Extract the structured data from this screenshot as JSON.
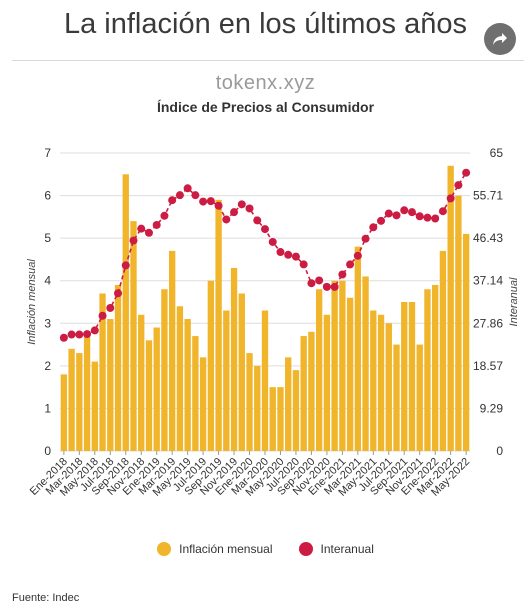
{
  "page": {
    "title": "La inflación en los últimos años",
    "watermark": "tokenx.xyz",
    "source": "Fuente: Indec"
  },
  "colors": {
    "bar": "#f0b52b",
    "line": "#cc1c43",
    "grid": "#dddddd"
  },
  "icons": {
    "share": "share-icon"
  },
  "chart_data": {
    "type": "bar+line",
    "title": "Índice de Precios al Consumidor",
    "ylabel_left": "Inflación mensual",
    "ylabel_right": "Interanual",
    "ylim_left": [
      0,
      7
    ],
    "ylim_right": [
      0,
      65
    ],
    "yticks_left": [
      "0",
      "1",
      "2",
      "3",
      "4",
      "5",
      "6",
      "7"
    ],
    "yticks_right": [
      "0",
      "9.29",
      "18.57",
      "27.86",
      "37.14",
      "46.43",
      "55.71",
      "65"
    ],
    "categories": [
      "Ene-2018",
      "Feb-2018",
      "Mar-2018",
      "Abr-2018",
      "May-2018",
      "Jun-2018",
      "Jul-2018",
      "Ago-2018",
      "Sep-2018",
      "Oct-2018",
      "Nov-2018",
      "Dic-2018",
      "Ene-2019",
      "Feb-2019",
      "Mar-2019",
      "Abr-2019",
      "May-2019",
      "Jun-2019",
      "Jul-2019",
      "Ago-2019",
      "Sep-2019",
      "Oct-2019",
      "Nov-2019",
      "Dic-2019",
      "Ene-2020",
      "Feb-2020",
      "Mar-2020",
      "Abr-2020",
      "May-2020",
      "Jun-2020",
      "Jul-2020",
      "Ago-2020",
      "Sep-2020",
      "Oct-2020",
      "Nov-2020",
      "Dic-2020",
      "Ene-2021",
      "Feb-2021",
      "Mar-2021",
      "Abr-2021",
      "May-2021",
      "Jun-2021",
      "Jul-2021",
      "Ago-2021",
      "Sep-2021",
      "Oct-2021",
      "Nov-2021",
      "Dic-2021",
      "Ene-2022",
      "Feb-2022",
      "Mar-2022",
      "Abr-2022",
      "May-2022"
    ],
    "x_tick_labels": [
      "Ene-2018",
      "Mar-2018",
      "May-2018",
      "Jul-2018",
      "Sep-2018",
      "Nov-2018",
      "Ene-2019",
      "Mar-2019",
      "May-2019",
      "Jul-2019",
      "Sep-2019",
      "Nov-2019",
      "Ene-2020",
      "Mar-2020",
      "May-2020",
      "Jul-2020",
      "Sep-2020",
      "Nov-2020",
      "Ene-2021",
      "Mar-2021",
      "May-2021",
      "Jul-2021",
      "Sep-2021",
      "Nov-2021",
      "Ene-2022",
      "Mar-2022",
      "May-2022"
    ],
    "series": [
      {
        "name": "Inflación mensual",
        "type": "bar",
        "values": [
          1.8,
          2.4,
          2.3,
          2.7,
          2.1,
          3.7,
          3.1,
          3.9,
          6.5,
          5.4,
          3.2,
          2.6,
          2.9,
          3.8,
          4.7,
          3.4,
          3.1,
          2.7,
          2.2,
          4.0,
          5.9,
          3.3,
          4.3,
          3.7,
          2.3,
          2.0,
          3.3,
          1.5,
          1.5,
          2.2,
          1.9,
          2.7,
          2.8,
          3.8,
          3.2,
          4.0,
          4.0,
          3.6,
          4.8,
          4.1,
          3.3,
          3.2,
          3.0,
          2.5,
          3.5,
          3.5,
          2.5,
          3.8,
          3.9,
          4.7,
          6.7,
          6.0,
          5.1
        ]
      },
      {
        "name": "Interanual",
        "type": "line",
        "axis": "right",
        "values": [
          24.7,
          25.4,
          25.4,
          25.5,
          26.3,
          29.5,
          31.2,
          34.4,
          40.5,
          45.9,
          48.5,
          47.6,
          49.3,
          51.3,
          54.7,
          55.8,
          57.3,
          55.8,
          54.4,
          54.5,
          53.5,
          50.5,
          52.1,
          53.8,
          52.9,
          50.3,
          48.4,
          45.6,
          43.4,
          42.8,
          42.4,
          40.7,
          36.6,
          37.2,
          35.8,
          35.8,
          38.5,
          40.7,
          42.6,
          46.3,
          48.8,
          50.2,
          51.8,
          51.4,
          52.5,
          52.1,
          51.2,
          50.9,
          50.7,
          52.3,
          55.1,
          58.0,
          60.7
        ]
      }
    ],
    "legend": [
      "Inflación mensual",
      "Interanual"
    ],
    "legend_position": "bottom",
    "grid": true
  }
}
